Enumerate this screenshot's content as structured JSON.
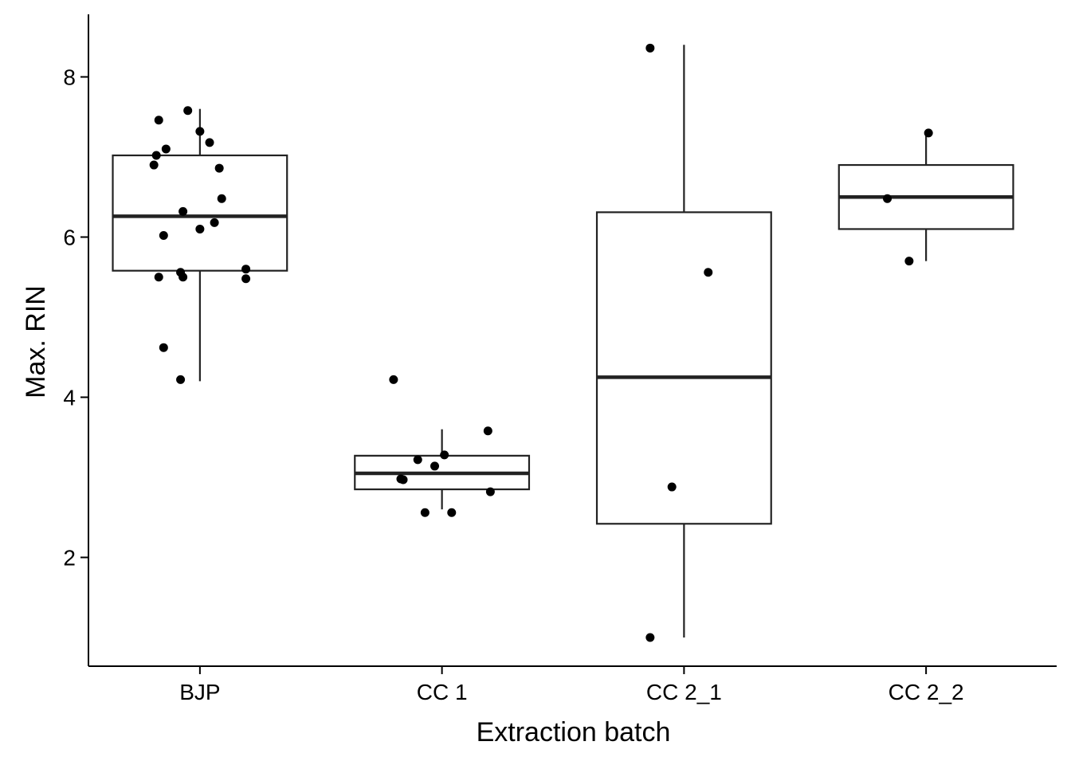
{
  "chart_data": {
    "type": "box",
    "xlabel": "Extraction batch",
    "ylabel": "Max. RIN",
    "ylim": [
      0.6,
      8.8
    ],
    "yticks": [
      2,
      4,
      6,
      8
    ],
    "grid": false,
    "legend": "none",
    "colors": {
      "box_outline": "#222222",
      "median": "#222222",
      "points": "#000000",
      "axis": "#000000"
    },
    "categories": [
      "BJP",
      "CC 1",
      "CC 2_1",
      "CC 2_2"
    ],
    "boxes": [
      {
        "category": "BJP",
        "whisker_low": 4.2,
        "q1": 5.58,
        "median": 6.26,
        "q3": 7.02,
        "whisker_high": 7.6
      },
      {
        "category": "CC 1",
        "whisker_low": 2.6,
        "q1": 2.85,
        "median": 3.05,
        "q3": 3.27,
        "whisker_high": 3.6
      },
      {
        "category": "CC 2_1",
        "whisker_low": 1.0,
        "q1": 2.42,
        "median": 4.25,
        "q3": 6.31,
        "whisker_high": 8.4
      },
      {
        "category": "CC 2_2",
        "whisker_low": 5.7,
        "q1": 6.1,
        "median": 6.5,
        "q3": 6.9,
        "whisker_high": 7.3
      }
    ],
    "points": [
      {
        "category": "BJP",
        "jitter": -0.17,
        "y": 7.46
      },
      {
        "category": "BJP",
        "jitter": -0.05,
        "y": 7.58
      },
      {
        "category": "BJP",
        "jitter": 0.0,
        "y": 7.32
      },
      {
        "category": "BJP",
        "jitter": 0.04,
        "y": 7.18
      },
      {
        "category": "BJP",
        "jitter": -0.14,
        "y": 7.1
      },
      {
        "category": "BJP",
        "jitter": -0.18,
        "y": 7.02
      },
      {
        "category": "BJP",
        "jitter": -0.19,
        "y": 6.9
      },
      {
        "category": "BJP",
        "jitter": 0.08,
        "y": 6.86
      },
      {
        "category": "BJP",
        "jitter": 0.09,
        "y": 6.48
      },
      {
        "category": "BJP",
        "jitter": -0.07,
        "y": 6.32
      },
      {
        "category": "BJP",
        "jitter": 0.06,
        "y": 6.18
      },
      {
        "category": "BJP",
        "jitter": 0.0,
        "y": 6.1
      },
      {
        "category": "BJP",
        "jitter": -0.15,
        "y": 6.02
      },
      {
        "category": "BJP",
        "jitter": 0.19,
        "y": 5.6
      },
      {
        "category": "BJP",
        "jitter": -0.08,
        "y": 5.56
      },
      {
        "category": "BJP",
        "jitter": -0.17,
        "y": 5.5
      },
      {
        "category": "BJP",
        "jitter": -0.07,
        "y": 5.5
      },
      {
        "category": "BJP",
        "jitter": 0.19,
        "y": 5.48
      },
      {
        "category": "BJP",
        "jitter": -0.15,
        "y": 4.62
      },
      {
        "category": "BJP",
        "jitter": -0.08,
        "y": 4.22
      },
      {
        "category": "CC 1",
        "jitter": -0.2,
        "y": 4.22
      },
      {
        "category": "CC 1",
        "jitter": 0.19,
        "y": 3.58
      },
      {
        "category": "CC 1",
        "jitter": 0.01,
        "y": 3.28
      },
      {
        "category": "CC 1",
        "jitter": -0.1,
        "y": 3.22
      },
      {
        "category": "CC 1",
        "jitter": -0.03,
        "y": 3.14
      },
      {
        "category": "CC 1",
        "jitter": -0.17,
        "y": 2.98
      },
      {
        "category": "CC 1",
        "jitter": -0.16,
        "y": 2.97
      },
      {
        "category": "CC 1",
        "jitter": 0.2,
        "y": 2.82
      },
      {
        "category": "CC 1",
        "jitter": -0.07,
        "y": 2.56
      },
      {
        "category": "CC 1",
        "jitter": 0.04,
        "y": 2.56
      },
      {
        "category": "CC 2_1",
        "jitter": -0.14,
        "y": 8.36
      },
      {
        "category": "CC 2_1",
        "jitter": 0.1,
        "y": 5.56
      },
      {
        "category": "CC 2_1",
        "jitter": -0.05,
        "y": 2.88
      },
      {
        "category": "CC 2_1",
        "jitter": -0.14,
        "y": 1.0
      },
      {
        "category": "CC 2_2",
        "jitter": 0.01,
        "y": 7.3
      },
      {
        "category": "CC 2_2",
        "jitter": -0.16,
        "y": 6.48
      },
      {
        "category": "CC 2_2",
        "jitter": -0.07,
        "y": 5.7
      }
    ]
  }
}
